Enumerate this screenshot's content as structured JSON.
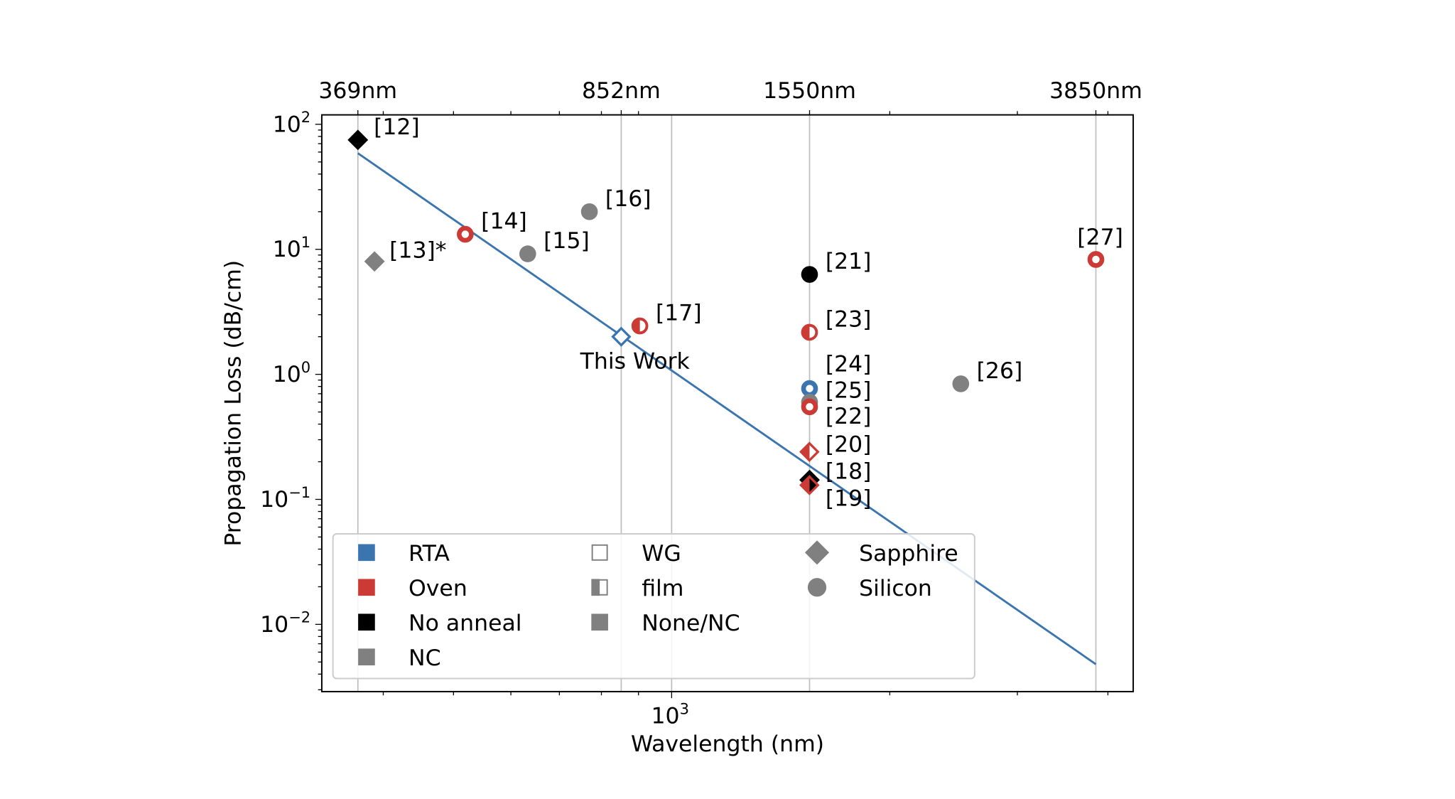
{
  "chart_data": {
    "type": "scatter",
    "xlabel": "Wavelength (nm)",
    "ylabel": "Propagation Loss (dB/cm)",
    "x_scale": "log",
    "y_scale": "log",
    "xlim": [
      329,
      4335
    ],
    "ylim": [
      0.0029,
      119
    ],
    "x_tick_labels": [
      {
        "value": 1000,
        "base": "10",
        "exp": "3"
      }
    ],
    "y_tick_labels": [
      {
        "value": 100,
        "base": "10",
        "exp": "2"
      },
      {
        "value": 10,
        "base": "10",
        "exp": "1"
      },
      {
        "value": 1,
        "base": "10",
        "exp": "0"
      },
      {
        "value": 0.1,
        "base": "10",
        "exp": "−1"
      },
      {
        "value": 0.01,
        "base": "10",
        "exp": "−2"
      }
    ],
    "top_axis_ticks": [
      {
        "value": 369,
        "label": "369nm"
      },
      {
        "value": 852,
        "label": "852nm"
      },
      {
        "value": 1550,
        "label": "1550nm"
      },
      {
        "value": 3850,
        "label": "3850nm"
      }
    ],
    "grid": "vertical lines at 369, 852, 1000, 1550, 3850 nm",
    "colors": {
      "RTA": "#3a75b0",
      "Oven": "#cc3a35",
      "No anneal": "#000000",
      "NC": "#808080"
    },
    "points": [
      {
        "label": "[12]",
        "x": 369,
        "y": 75,
        "shape": "diamond",
        "anneal": "No anneal",
        "fill": "filled"
      },
      {
        "label": "[13]*",
        "x": 389,
        "y": 8.0,
        "shape": "diamond",
        "anneal": "NC",
        "fill": "filled"
      },
      {
        "label": "[14]",
        "x": 519,
        "y": 13.2,
        "shape": "circle",
        "anneal": "Oven",
        "fill": "ring"
      },
      {
        "label": "[15]",
        "x": 633,
        "y": 9.2,
        "shape": "circle",
        "anneal": "NC",
        "fill": "filled"
      },
      {
        "label": "[16]",
        "x": 770,
        "y": 20,
        "shape": "circle",
        "anneal": "NC",
        "fill": "filled"
      },
      {
        "label": "This Work",
        "x": 852,
        "y": 2.0,
        "shape": "diamond",
        "anneal": "RTA",
        "fill": "open"
      },
      {
        "label": "[17]",
        "x": 904,
        "y": 2.44,
        "shape": "circle",
        "anneal": "Oven",
        "fill": "half"
      },
      {
        "label": "[21]",
        "x": 1550,
        "y": 6.3,
        "shape": "circle",
        "anneal": "No anneal",
        "fill": "filled"
      },
      {
        "label": "[23]",
        "x": 1550,
        "y": 2.17,
        "shape": "circle",
        "anneal": "Oven",
        "fill": "half"
      },
      {
        "label": "[24]",
        "x": 1550,
        "y": 0.77,
        "shape": "circle",
        "anneal": "RTA",
        "fill": "ring"
      },
      {
        "label": "[25]",
        "x": 1550,
        "y": 0.6,
        "shape": "circle",
        "anneal": "NC",
        "fill": "filled"
      },
      {
        "label": "[22]",
        "x": 1550,
        "y": 0.55,
        "shape": "circle",
        "anneal": "Oven",
        "fill": "ring"
      },
      {
        "label": "[20]",
        "x": 1550,
        "y": 0.24,
        "shape": "diamond",
        "anneal": "Oven",
        "fill": "half"
      },
      {
        "label": "[18]",
        "x": 1550,
        "y": 0.143,
        "shape": "diamond",
        "anneal": "No anneal",
        "fill": "filled"
      },
      {
        "label": "[19]",
        "x": 1550,
        "y": 0.13,
        "shape": "diamond",
        "anneal": "Oven",
        "fill": "halfblack"
      },
      {
        "label": "[26]",
        "x": 2506,
        "y": 0.84,
        "shape": "circle",
        "anneal": "NC",
        "fill": "filled"
      },
      {
        "label": "[27]",
        "x": 3850,
        "y": 8.3,
        "shape": "circle",
        "anneal": "Oven",
        "fill": "ring"
      }
    ],
    "fit_line": {
      "x": [
        369,
        3850
      ],
      "y": [
        58.7,
        0.0048
      ],
      "color": "#3a75b0"
    },
    "legend": {
      "placement": "lower-center",
      "columns": [
        [
          {
            "label": "RTA",
            "icon": "square",
            "color": "#3a75b0"
          },
          {
            "label": "Oven",
            "icon": "square",
            "color": "#cc3a35"
          },
          {
            "label": "No anneal",
            "icon": "square",
            "color": "#000000"
          },
          {
            "label": "NC",
            "icon": "square",
            "color": "#808080"
          }
        ],
        [
          {
            "label": "WG",
            "icon": "open-square",
            "color": "#808080"
          },
          {
            "label": "film",
            "icon": "half-square",
            "color": "#808080"
          },
          {
            "label": "None/NC",
            "icon": "square",
            "color": "#808080"
          }
        ],
        [
          {
            "label": "Sapphire",
            "icon": "diamond",
            "color": "#808080"
          },
          {
            "label": "Silicon",
            "icon": "circle",
            "color": "#808080"
          }
        ]
      ]
    }
  }
}
